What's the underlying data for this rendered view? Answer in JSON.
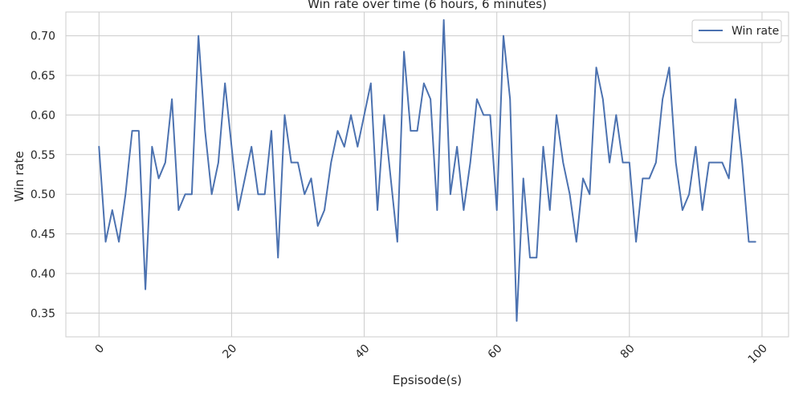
{
  "chart_data": {
    "type": "line",
    "title": "Win rate over time (6 hours, 6 minutes)",
    "xlabel": "Epsisode(s)",
    "ylabel": "Win rate",
    "xlim": [
      -5,
      104
    ],
    "ylim": [
      0.32,
      0.73
    ],
    "xticks": [
      0,
      20,
      40,
      60,
      80,
      100
    ],
    "yticks": [
      0.35,
      0.4,
      0.45,
      0.5,
      0.55,
      0.6,
      0.65,
      0.7
    ],
    "ytick_labels": [
      "0.35",
      "0.40",
      "0.45",
      "0.50",
      "0.55",
      "0.60",
      "0.65",
      "0.70"
    ],
    "xtick_labels": [
      "0",
      "20",
      "40",
      "60",
      "80",
      "100"
    ],
    "grid": true,
    "legend_position": "top-right",
    "series": [
      {
        "name": "Win rate",
        "color": "#4c72b0",
        "x": [
          0,
          1,
          2,
          3,
          4,
          5,
          6,
          7,
          8,
          9,
          10,
          11,
          12,
          13,
          14,
          15,
          16,
          17,
          18,
          19,
          20,
          21,
          22,
          23,
          24,
          25,
          26,
          27,
          28,
          29,
          30,
          31,
          32,
          33,
          34,
          35,
          36,
          37,
          38,
          39,
          40,
          41,
          42,
          43,
          44,
          45,
          46,
          47,
          48,
          49,
          50,
          51,
          52,
          53,
          54,
          55,
          56,
          57,
          58,
          59,
          60,
          61,
          62,
          63,
          64,
          65,
          66,
          67,
          68,
          69,
          70,
          71,
          72,
          73,
          74,
          75,
          76,
          77,
          78,
          79,
          80,
          81,
          82,
          83,
          84,
          85,
          86,
          87,
          88,
          89,
          90,
          91,
          92,
          93,
          94,
          95,
          96,
          97,
          98,
          99
        ],
        "values": [
          0.56,
          0.44,
          0.48,
          0.44,
          0.5,
          0.58,
          0.58,
          0.38,
          0.56,
          0.52,
          0.54,
          0.62,
          0.48,
          0.5,
          0.5,
          0.7,
          0.58,
          0.5,
          0.54,
          0.64,
          0.56,
          0.48,
          0.52,
          0.56,
          0.5,
          0.5,
          0.58,
          0.42,
          0.6,
          0.54,
          0.54,
          0.5,
          0.52,
          0.46,
          0.48,
          0.54,
          0.58,
          0.56,
          0.6,
          0.56,
          0.6,
          0.64,
          0.48,
          0.6,
          0.52,
          0.44,
          0.68,
          0.58,
          0.58,
          0.64,
          0.62,
          0.48,
          0.72,
          0.5,
          0.56,
          0.48,
          0.54,
          0.62,
          0.6,
          0.6,
          0.48,
          0.7,
          0.62,
          0.34,
          0.52,
          0.42,
          0.42,
          0.56,
          0.48,
          0.6,
          0.54,
          0.5,
          0.44,
          0.52,
          0.5,
          0.66,
          0.62,
          0.54,
          0.6,
          0.54,
          0.54,
          0.44,
          0.52,
          0.52,
          0.54,
          0.62,
          0.66,
          0.54,
          0.48,
          0.5,
          0.56,
          0.48,
          0.54,
          0.54,
          0.54,
          0.52,
          0.62,
          0.54,
          0.44,
          0.44
        ]
      }
    ]
  }
}
